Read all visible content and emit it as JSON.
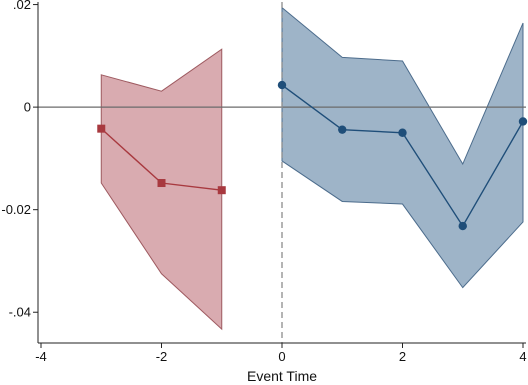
{
  "chart_data": {
    "type": "line",
    "title": "",
    "xlabel": "Event Time",
    "ylabel": "",
    "xlim": [
      -4.05,
      4.05
    ],
    "ylim": [
      -0.046,
      0.0205
    ],
    "x_ticks": [
      {
        "value": -4,
        "label": "-4"
      },
      {
        "value": -2,
        "label": "-2"
      },
      {
        "value": 0,
        "label": "0"
      },
      {
        "value": 2,
        "label": "2"
      },
      {
        "value": 4,
        "label": "4"
      }
    ],
    "y_ticks": [
      {
        "value": 0.02,
        "label": ".02"
      },
      {
        "value": 0,
        "label": "0"
      },
      {
        "value": -0.02,
        "label": "-0.02"
      },
      {
        "value": -0.04,
        "label": "-.04"
      }
    ],
    "reference_lines": {
      "horizontal_at_y": 0,
      "vertical_dashed_at_x": 0
    },
    "grid": false,
    "legend": "none",
    "series": [
      {
        "marker": "square",
        "line_color": "#a8393f",
        "band_fill": "#cc8f95",
        "band_stroke": "#9e5a60",
        "x": [
          -3,
          -2,
          -1
        ],
        "y": [
          -0.0042,
          -0.0148,
          -0.0162
        ],
        "ci_lower": [
          -0.0148,
          -0.0325,
          -0.0433
        ],
        "ci_upper": [
          0.0063,
          0.0031,
          0.0113
        ]
      },
      {
        "marker": "circle",
        "line_color": "#1f4e79",
        "band_fill": "#7e9bb6",
        "band_stroke": "#4c6c8c",
        "x": [
          0,
          1,
          2,
          3,
          4
        ],
        "y": [
          0.0043,
          -0.0044,
          -0.005,
          -0.0232,
          -0.0028
        ],
        "ci_lower": [
          -0.0105,
          -0.0184,
          -0.0189,
          -0.0352,
          -0.0224
        ],
        "ci_upper": [
          0.0194,
          0.0097,
          0.009,
          -0.0111,
          0.0164
        ]
      }
    ]
  }
}
